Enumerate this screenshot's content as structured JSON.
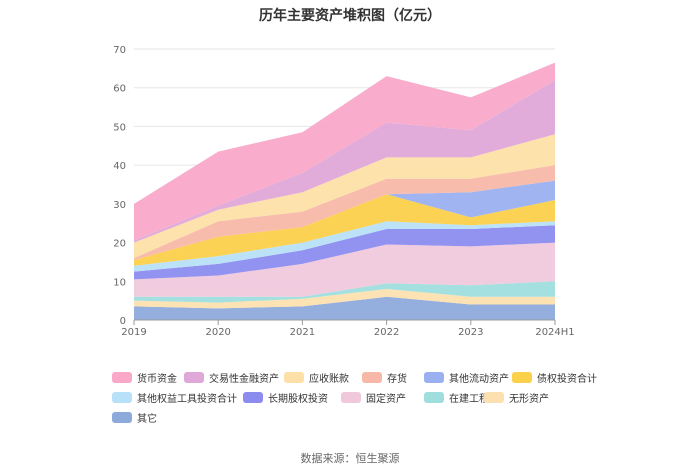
{
  "chart_data": {
    "type": "area",
    "stacked": true,
    "title": "历年主要资产堆积图（亿元）",
    "source": "数据来源：恒生聚源",
    "categories": [
      "2019",
      "2020",
      "2021",
      "2022",
      "2023",
      "2024H1"
    ],
    "ylim": [
      0,
      70
    ],
    "yticks": [
      0,
      10,
      20,
      30,
      40,
      50,
      60,
      70
    ],
    "grid": true,
    "legend_position": "bottom",
    "series": [
      {
        "name": "其它",
        "color": "#8eaadb",
        "values": [
          3.5,
          3.0,
          3.5,
          6.0,
          4.0,
          4.0
        ]
      },
      {
        "name": "无形资产",
        "color": "#fde0b0",
        "values": [
          1.5,
          1.5,
          2.0,
          2.0,
          2.0,
          2.0
        ]
      },
      {
        "name": "在建工程",
        "color": "#a0dede",
        "values": [
          1.0,
          1.5,
          0.5,
          1.5,
          3.0,
          4.0
        ]
      },
      {
        "name": "固定资产",
        "color": "#f0c8dc",
        "values": [
          4.5,
          5.5,
          8.5,
          10.0,
          10.0,
          10.0
        ]
      },
      {
        "name": "长期股权投资",
        "color": "#8c8cf0",
        "values": [
          2.0,
          3.0,
          3.5,
          4.0,
          4.5,
          4.5
        ]
      },
      {
        "name": "其他权益工具投资合计",
        "color": "#b8e0f8",
        "values": [
          1.5,
          2.0,
          2.0,
          2.0,
          1.0,
          1.0
        ]
      },
      {
        "name": "债权投资合计",
        "color": "#fbd04a",
        "values": [
          1.5,
          5.0,
          4.0,
          7.0,
          2.0,
          5.5
        ]
      },
      {
        "name": "其他流动资产",
        "color": "#9ab0f0",
        "values": [
          0.0,
          0.0,
          0.0,
          0.0,
          6.5,
          5.0
        ]
      },
      {
        "name": "存货",
        "color": "#f8b8a8",
        "values": [
          0.5,
          4.0,
          4.0,
          4.0,
          3.5,
          4.0
        ]
      },
      {
        "name": "应收账款",
        "color": "#fde0a8",
        "values": [
          4.0,
          3.0,
          5.0,
          5.5,
          5.5,
          8.0
        ]
      },
      {
        "name": "交易性金融资产",
        "color": "#e0a8d8",
        "values": [
          0.5,
          1.0,
          5.0,
          9.0,
          7.0,
          14.0
        ]
      },
      {
        "name": "货币资金",
        "color": "#f9a8c8",
        "values": [
          9.5,
          14.0,
          10.5,
          12.0,
          8.5,
          4.5
        ]
      }
    ],
    "legend_order": [
      "货币资金",
      "交易性金融资产",
      "应收账款",
      "存货",
      "其他流动资产",
      "债权投资合计",
      "其他权益工具投资合计",
      "长期股权投资",
      "固定资产",
      "在建工程",
      "无形资产",
      "其它"
    ]
  }
}
